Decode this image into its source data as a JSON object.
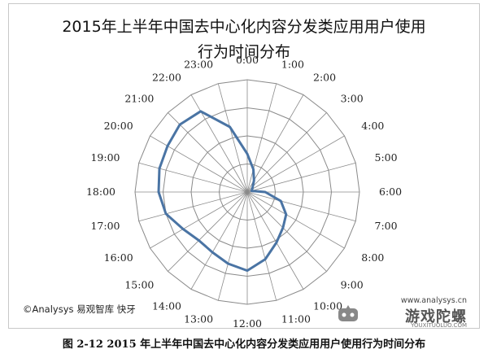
{
  "title_line1": "2015年上半年中国去中心化内容分发类应用用户使用",
  "title_line2": "行为时间分布",
  "credit": "©Analysys 易观智库  快牙",
  "watermark": {
    "url": "www.analysys.cn",
    "name": "游戏陀螺",
    "sub": "YOUXITUOLUO.COM"
  },
  "caption": "图 2-12 2015 年上半年中国去中心化内容分发类应用用户使用行为时间分布",
  "chart_data": {
    "type": "radar",
    "categories": [
      "0:00",
      "1:00",
      "2:00",
      "3:00",
      "4:00",
      "5:00",
      "6:00",
      "7:00",
      "8:00",
      "9:00",
      "10:00",
      "11:00",
      "12:00",
      "13:00",
      "14:00",
      "15:00",
      "16:00",
      "17:00",
      "18:00",
      "19:00",
      "20:00",
      "21:00",
      "22:00",
      "23:00"
    ],
    "values": [
      0.34,
      0.21,
      0.12,
      0.07,
      0.05,
      0.04,
      0.16,
      0.31,
      0.4,
      0.45,
      0.52,
      0.62,
      0.7,
      0.66,
      0.62,
      0.61,
      0.66,
      0.75,
      0.79,
      0.81,
      0.82,
      0.85,
      0.83,
      0.6
    ],
    "rmax": 1.0,
    "rings": 4,
    "line_color": "#4a74a4",
    "grid_color": "#8a8a8a"
  }
}
